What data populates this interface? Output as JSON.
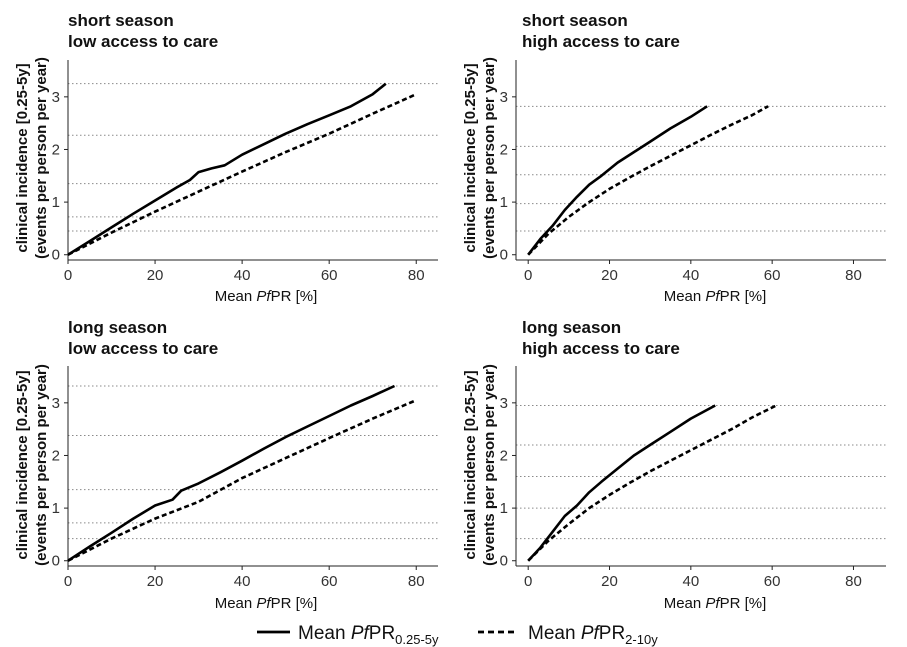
{
  "chart_data": [
    {
      "type": "line",
      "title_line1": "short season",
      "title_line2": "low access to care",
      "xlabel_prefix": "Mean ",
      "xlabel_italic": "Pf",
      "xlabel_suffix": "PR [%]",
      "ylabel_line1": "clinical incidence [0.25-5y]",
      "ylabel_line2": "(events per person per year)",
      "xlim": [
        0,
        85
      ],
      "ylim": [
        -0.1,
        3.7
      ],
      "xticks": [
        0,
        20,
        40,
        60,
        80
      ],
      "yticks": [
        0,
        1,
        2,
        3
      ],
      "hlines": [
        0.45,
        0.72,
        1.35,
        2.27,
        3.25
      ],
      "series": [
        {
          "name": "Mean PfPR0.25-5y",
          "style": "solid",
          "x": [
            0,
            5,
            10,
            15,
            20,
            25,
            28,
            30,
            33,
            36,
            40,
            45,
            50,
            55,
            60,
            65,
            70,
            73
          ],
          "y": [
            0,
            0.26,
            0.52,
            0.78,
            1.03,
            1.28,
            1.42,
            1.57,
            1.64,
            1.7,
            1.9,
            2.1,
            2.3,
            2.48,
            2.65,
            2.82,
            3.05,
            3.25
          ]
        },
        {
          "name": "Mean PfPR2-10y",
          "style": "dashed",
          "x": [
            0,
            10,
            20,
            30,
            40,
            50,
            60,
            70,
            80
          ],
          "y": [
            0,
            0.42,
            0.82,
            1.2,
            1.58,
            1.95,
            2.3,
            2.68,
            3.05
          ]
        }
      ]
    },
    {
      "type": "line",
      "title_line1": "short season",
      "title_line2": "high access to care",
      "xlabel_prefix": "Mean ",
      "xlabel_italic": "Pf",
      "xlabel_suffix": "PR [%]",
      "ylabel_line1": "clinical incidence [0.25-5y]",
      "ylabel_line2": "(events per person per year)",
      "xlim": [
        -3,
        88
      ],
      "ylim": [
        -0.1,
        3.7
      ],
      "xticks": [
        0,
        20,
        40,
        60,
        80
      ],
      "yticks": [
        0,
        1,
        2,
        3
      ],
      "hlines": [
        0.45,
        0.97,
        1.52,
        2.06,
        2.82
      ],
      "series": [
        {
          "name": "Mean PfPR0.25-5y",
          "style": "solid",
          "x": [
            0,
            3,
            6,
            9,
            12,
            15,
            18,
            22,
            26,
            30,
            35,
            40,
            44
          ],
          "y": [
            0,
            0.3,
            0.55,
            0.85,
            1.1,
            1.33,
            1.5,
            1.75,
            1.95,
            2.15,
            2.4,
            2.62,
            2.82
          ]
        },
        {
          "name": "Mean PfPR2-10y",
          "style": "dashed",
          "x": [
            0,
            5,
            10,
            15,
            20,
            25,
            30,
            35,
            40,
            45,
            50,
            55,
            59
          ],
          "y": [
            0,
            0.4,
            0.72,
            1.0,
            1.25,
            1.47,
            1.68,
            1.88,
            2.08,
            2.28,
            2.47,
            2.65,
            2.82
          ]
        }
      ]
    },
    {
      "type": "line",
      "title_line1": "long season",
      "title_line2": "low access to care",
      "xlabel_prefix": "Mean ",
      "xlabel_italic": "Pf",
      "xlabel_suffix": "PR [%]",
      "ylabel_line1": "clinical incidence [0.25-5y]",
      "ylabel_line2": "(events per person per year)",
      "xlim": [
        0,
        85
      ],
      "ylim": [
        -0.1,
        3.7
      ],
      "xticks": [
        0,
        20,
        40,
        60,
        80
      ],
      "yticks": [
        0,
        1,
        2,
        3
      ],
      "hlines": [
        0.42,
        0.72,
        1.35,
        2.38,
        3.32
      ],
      "series": [
        {
          "name": "Mean PfPR0.25-5y",
          "style": "solid",
          "x": [
            0,
            5,
            10,
            15,
            20,
            24,
            26,
            30,
            35,
            40,
            45,
            50,
            55,
            60,
            65,
            70,
            75
          ],
          "y": [
            0,
            0.27,
            0.53,
            0.8,
            1.05,
            1.16,
            1.33,
            1.47,
            1.68,
            1.9,
            2.13,
            2.35,
            2.55,
            2.75,
            2.95,
            3.13,
            3.32
          ]
        },
        {
          "name": "Mean PfPR2-10y",
          "style": "dashed",
          "x": [
            0,
            10,
            20,
            30,
            40,
            50,
            60,
            70,
            80
          ],
          "y": [
            0,
            0.42,
            0.8,
            1.12,
            1.57,
            1.95,
            2.33,
            2.7,
            3.05
          ]
        }
      ]
    },
    {
      "type": "line",
      "title_line1": "long season",
      "title_line2": "high access to care",
      "xlabel_prefix": "Mean ",
      "xlabel_italic": "Pf",
      "xlabel_suffix": "PR [%]",
      "ylabel_line1": "clinical incidence [0.25-5y]",
      "ylabel_line2": "(events per person per year)",
      "xlim": [
        -3,
        88
      ],
      "ylim": [
        -0.1,
        3.7
      ],
      "xticks": [
        0,
        20,
        40,
        60,
        80
      ],
      "yticks": [
        0,
        1,
        2,
        3
      ],
      "hlines": [
        0.42,
        1.0,
        1.6,
        2.2,
        2.95
      ],
      "series": [
        {
          "name": "Mean PfPR0.25-5y",
          "style": "solid",
          "x": [
            0,
            3,
            6,
            9,
            12,
            15,
            18,
            22,
            26,
            30,
            35,
            40,
            46
          ],
          "y": [
            0,
            0.25,
            0.55,
            0.85,
            1.05,
            1.3,
            1.5,
            1.75,
            2.0,
            2.2,
            2.45,
            2.7,
            2.95
          ]
        },
        {
          "name": "Mean PfPR2-10y",
          "style": "dashed",
          "x": [
            0,
            5,
            10,
            15,
            20,
            25,
            30,
            35,
            40,
            45,
            50,
            55,
            61
          ],
          "y": [
            0,
            0.38,
            0.7,
            1.0,
            1.25,
            1.48,
            1.7,
            1.9,
            2.1,
            2.3,
            2.5,
            2.72,
            2.95
          ]
        }
      ]
    }
  ],
  "legend": {
    "solid": {
      "prefix": "Mean ",
      "italic": "Pf",
      "main": "PR",
      "sub": "0.25-5y"
    },
    "dashed": {
      "prefix": "Mean ",
      "italic": "Pf",
      "main": "PR",
      "sub": "2-10y"
    }
  }
}
